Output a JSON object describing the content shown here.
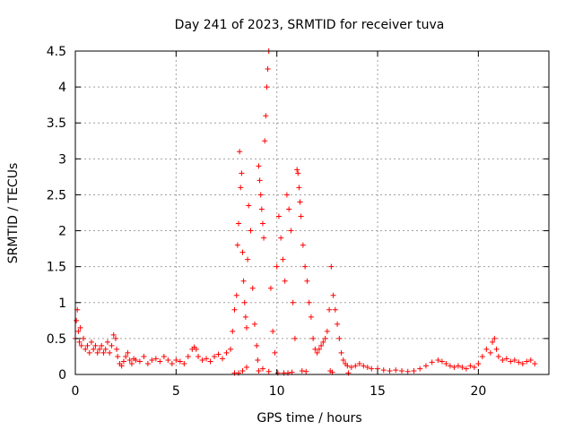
{
  "chart_data": {
    "type": "scatter",
    "title": "Day 241 of 2023, SRMTID for receiver tuva",
    "xlabel": "GPS time / hours",
    "ylabel": "SRMTID / TECUs",
    "xlim": [
      0,
      23.5
    ],
    "ylim": [
      0,
      4.5
    ],
    "xticks": [
      0,
      5,
      10,
      15,
      20
    ],
    "yticks": [
      0,
      0.5,
      1,
      1.5,
      2,
      2.5,
      3,
      3.5,
      4,
      4.5
    ],
    "ytick_labels": [
      "0",
      "0.5",
      "1",
      "1.5",
      "2",
      "2.5",
      "3",
      "3.5",
      "4",
      "4.5"
    ],
    "grid": true,
    "marker": "+",
    "color": "#ff0000",
    "series": [
      {
        "name": "SRMTID",
        "x": [
          0.0,
          0.05,
          0.1,
          0.15,
          0.2,
          0.25,
          0.3,
          0.4,
          0.5,
          0.6,
          0.7,
          0.8,
          0.9,
          1.0,
          1.1,
          1.2,
          1.3,
          1.4,
          1.5,
          1.6,
          1.7,
          1.8,
          1.9,
          2.0,
          2.05,
          2.1,
          2.2,
          2.3,
          2.4,
          2.5,
          2.6,
          2.7,
          2.8,
          2.9,
          3.0,
          3.2,
          3.4,
          3.6,
          3.8,
          4.0,
          4.2,
          4.4,
          4.6,
          4.8,
          5.0,
          5.2,
          5.4,
          5.6,
          5.8,
          5.9,
          6.0,
          6.1,
          6.3,
          6.5,
          6.7,
          6.9,
          7.1,
          7.3,
          7.5,
          7.7,
          7.8,
          7.9,
          8.0,
          8.05,
          8.1,
          8.15,
          8.2,
          8.25,
          8.3,
          8.35,
          8.4,
          8.45,
          8.5,
          8.55,
          8.6,
          8.7,
          8.8,
          8.9,
          9.0,
          9.05,
          9.1,
          9.15,
          9.2,
          9.25,
          9.3,
          9.35,
          9.4,
          9.45,
          9.5,
          9.55,
          9.6,
          9.7,
          9.8,
          9.9,
          10.0,
          10.1,
          10.2,
          10.3,
          10.4,
          10.5,
          10.6,
          10.7,
          10.8,
          10.9,
          11.0,
          11.05,
          11.1,
          11.15,
          11.2,
          11.3,
          11.4,
          11.5,
          11.6,
          11.7,
          11.8,
          11.9,
          12.0,
          12.1,
          12.2,
          12.3,
          12.4,
          12.5,
          12.6,
          12.7,
          12.8,
          12.9,
          13.0,
          13.1,
          13.2,
          13.3,
          13.4,
          13.5,
          13.7,
          13.9,
          14.1,
          14.3,
          14.5,
          14.7,
          15.0,
          15.3,
          15.6,
          15.9,
          16.2,
          16.5,
          16.8,
          17.1,
          17.4,
          17.7,
          18.0,
          18.2,
          18.4,
          18.6,
          18.8,
          19.0,
          19.2,
          19.4,
          19.6,
          19.8,
          20.0,
          20.2,
          20.4,
          20.6,
          20.7,
          20.8,
          20.9,
          21.0,
          21.2,
          21.4,
          21.6,
          21.8,
          22.0,
          22.2,
          22.4,
          22.6,
          22.8,
          7.9,
          8.1,
          8.3,
          8.5,
          9.1,
          9.3,
          9.6,
          10.05,
          10.35,
          10.55,
          10.75,
          11.25,
          11.45,
          12.65,
          12.75,
          13.55
        ],
        "y": [
          0.5,
          0.75,
          0.9,
          0.6,
          0.45,
          0.65,
          0.4,
          0.5,
          0.35,
          0.4,
          0.3,
          0.45,
          0.35,
          0.4,
          0.3,
          0.35,
          0.4,
          0.3,
          0.35,
          0.45,
          0.3,
          0.4,
          0.55,
          0.5,
          0.35,
          0.25,
          0.15,
          0.12,
          0.18,
          0.25,
          0.3,
          0.2,
          0.15,
          0.22,
          0.2,
          0.18,
          0.25,
          0.15,
          0.2,
          0.22,
          0.18,
          0.25,
          0.2,
          0.15,
          0.2,
          0.18,
          0.15,
          0.25,
          0.35,
          0.38,
          0.35,
          0.25,
          0.2,
          0.22,
          0.18,
          0.25,
          0.28,
          0.22,
          0.3,
          0.35,
          0.6,
          0.9,
          1.1,
          1.8,
          2.1,
          3.1,
          2.6,
          2.8,
          1.7,
          1.3,
          1.0,
          0.8,
          0.65,
          1.6,
          2.35,
          2.0,
          1.2,
          0.7,
          0.4,
          0.2,
          2.9,
          2.7,
          2.5,
          2.3,
          2.1,
          1.9,
          3.25,
          3.6,
          4.0,
          4.25,
          4.5,
          1.2,
          0.6,
          0.3,
          1.5,
          2.2,
          1.9,
          1.6,
          1.3,
          2.5,
          2.3,
          2.0,
          1.0,
          0.5,
          2.85,
          2.8,
          2.6,
          2.4,
          2.2,
          1.8,
          1.5,
          1.3,
          1.0,
          0.8,
          0.5,
          0.35,
          0.3,
          0.35,
          0.4,
          0.45,
          0.5,
          0.6,
          0.9,
          1.5,
          1.1,
          0.9,
          0.7,
          0.5,
          0.3,
          0.2,
          0.15,
          0.12,
          0.1,
          0.12,
          0.15,
          0.12,
          0.1,
          0.08,
          0.08,
          0.06,
          0.05,
          0.06,
          0.05,
          0.04,
          0.05,
          0.08,
          0.12,
          0.17,
          0.2,
          0.18,
          0.15,
          0.12,
          0.1,
          0.12,
          0.1,
          0.08,
          0.12,
          0.1,
          0.15,
          0.25,
          0.35,
          0.3,
          0.45,
          0.5,
          0.35,
          0.25,
          0.2,
          0.22,
          0.18,
          0.2,
          0.17,
          0.15,
          0.18,
          0.2,
          0.15,
          0.02,
          0.02,
          0.05,
          0.1,
          0.05,
          0.08,
          0.04,
          0.02,
          0.02,
          0.02,
          0.03,
          0.05,
          0.04,
          0.05,
          0.03,
          0.02
        ]
      }
    ]
  }
}
